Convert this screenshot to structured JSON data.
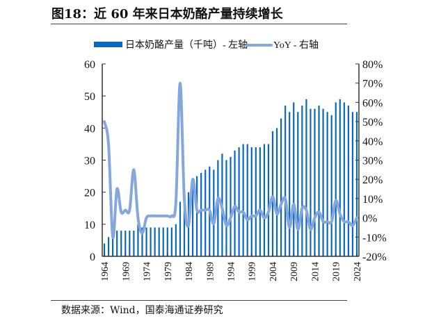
{
  "title": "图18：近 60 年来日本奶酪产量持续增长",
  "footer": "数据来源：Wind，国泰海通证券研究",
  "colors": {
    "bar": "#0868c0",
    "line": "#86a6de"
  },
  "chart_data": {
    "type": "bar+line",
    "legend_position": "top",
    "x": [
      1964,
      1965,
      1966,
      1967,
      1968,
      1969,
      1970,
      1971,
      1972,
      1973,
      1974,
      1975,
      1976,
      1977,
      1978,
      1979,
      1980,
      1981,
      1982,
      1983,
      1984,
      1985,
      1986,
      1987,
      1988,
      1989,
      1990,
      1991,
      1992,
      1993,
      1994,
      1995,
      1996,
      1997,
      1998,
      1999,
      2000,
      2001,
      2002,
      2003,
      2004,
      2005,
      2006,
      2007,
      2008,
      2009,
      2010,
      2011,
      2012,
      2013,
      2014,
      2015,
      2016,
      2017,
      2018,
      2019,
      2020,
      2021,
      2022,
      2023,
      2024
    ],
    "xticks": [
      "1964",
      "1969",
      "1974",
      "1979",
      "1984",
      "1989",
      "1994",
      "1999",
      "2004",
      "2009",
      "2014",
      "2019",
      "2024"
    ],
    "left_axis": {
      "ylim": [
        0,
        60
      ],
      "ticks": [
        "0",
        "10",
        "20",
        "30",
        "40",
        "50",
        "60"
      ]
    },
    "right_axis": {
      "ylim": [
        -20,
        80
      ],
      "ticks": [
        "-20%",
        "-10%",
        "0%",
        "10%",
        "20%",
        "30%",
        "40%",
        "50%",
        "60%",
        "70%",
        "80%"
      ]
    },
    "series": [
      {
        "name": "日本奶酪产量（千吨）- 左轴",
        "type": "bar",
        "axis": "left",
        "values": [
          4,
          6,
          8,
          8,
          8,
          8,
          8,
          8,
          10,
          9,
          9,
          9,
          9,
          9,
          9,
          9,
          9,
          10,
          17,
          19,
          20,
          24,
          25,
          26,
          27,
          28,
          27,
          30,
          32,
          30,
          31,
          33,
          34,
          35,
          35,
          34,
          34,
          34,
          35,
          35,
          39,
          40,
          43,
          47,
          45,
          48,
          45,
          47,
          49,
          46,
          46,
          47,
          46,
          45,
          44,
          48,
          49,
          48,
          47,
          45,
          45
        ]
      },
      {
        "name": "YoY - 右轴",
        "type": "line",
        "axis": "right",
        "values": [
          50,
          38,
          -10,
          15,
          3,
          4,
          4,
          25,
          0,
          -8,
          0,
          1,
          1,
          1,
          1,
          1,
          1,
          8,
          70,
          10,
          -4,
          20,
          4,
          4,
          4,
          4,
          -3,
          10,
          5,
          -4,
          0,
          6,
          3,
          3,
          -1,
          1,
          1,
          4,
          0,
          3,
          11,
          2,
          7,
          10,
          -5,
          7,
          -6,
          5,
          4,
          -6,
          0,
          3,
          -2,
          -2,
          -2,
          9,
          2,
          -2,
          -2,
          -4,
          0
        ]
      }
    ]
  }
}
